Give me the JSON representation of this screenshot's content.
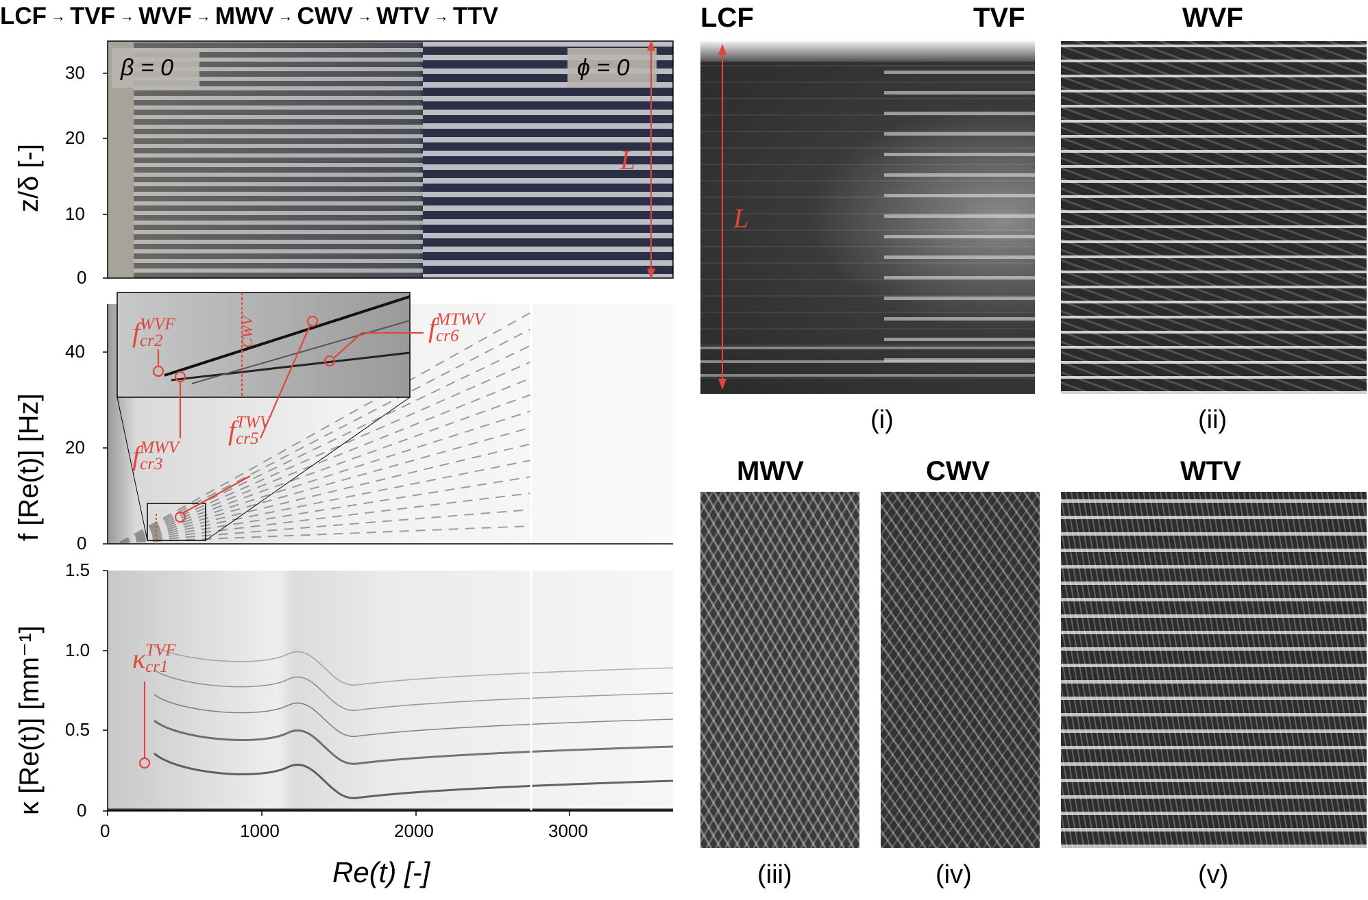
{
  "sequence": [
    "LCF",
    "TVF",
    "WVF",
    "MWV",
    "CWV",
    "WTV",
    "TTV"
  ],
  "sequence_arrow": "→",
  "panel_top": {
    "ylabel": "z/δ [-]",
    "yticks": [
      "0",
      "10",
      "20",
      "30"
    ],
    "tag_left": "β = 0",
    "tag_right": "ϕ = 0",
    "length_label": "L"
  },
  "panel_mid": {
    "ylabel": "f [Re(t)] [Hz]",
    "yticks": [
      "0",
      "20",
      "40"
    ],
    "inset_regime_label": "CWV",
    "annotations": [
      {
        "base": "f",
        "sup": "WVF",
        "sub": "cr2"
      },
      {
        "base": "f",
        "sup": "MWV",
        "sub": "cr3"
      },
      {
        "base": "f",
        "sup": "TWV",
        "sub": "cr5"
      },
      {
        "base": "f",
        "sup": "MTWV",
        "sub": "cr6"
      }
    ]
  },
  "panel_bot": {
    "ylabel": "κ [Re(t)] [mm⁻¹]",
    "yticks": [
      "0",
      "0.5",
      "1.0",
      "1.5"
    ],
    "annotation": {
      "base": "κ",
      "sup": "TVF",
      "sub": "cr1"
    }
  },
  "xaxis": {
    "label": "Re(t) [-]",
    "ticks": [
      "0",
      "1000",
      "2000",
      "3000"
    ]
  },
  "right_panels": [
    {
      "id": "i",
      "roman": "(i)",
      "titles": [
        "LCF",
        "TVF"
      ],
      "length_label": "L"
    },
    {
      "id": "ii",
      "roman": "(ii)",
      "titles": [
        "WVF"
      ]
    },
    {
      "id": "iii",
      "roman": "(iii)",
      "titles": [
        "MWV"
      ]
    },
    {
      "id": "iv",
      "roman": "(iv)",
      "titles": [
        "CWV"
      ]
    },
    {
      "id": "v",
      "roman": "(v)",
      "titles": [
        "WTV"
      ]
    }
  ],
  "colors": {
    "accent": "#e0473a"
  }
}
